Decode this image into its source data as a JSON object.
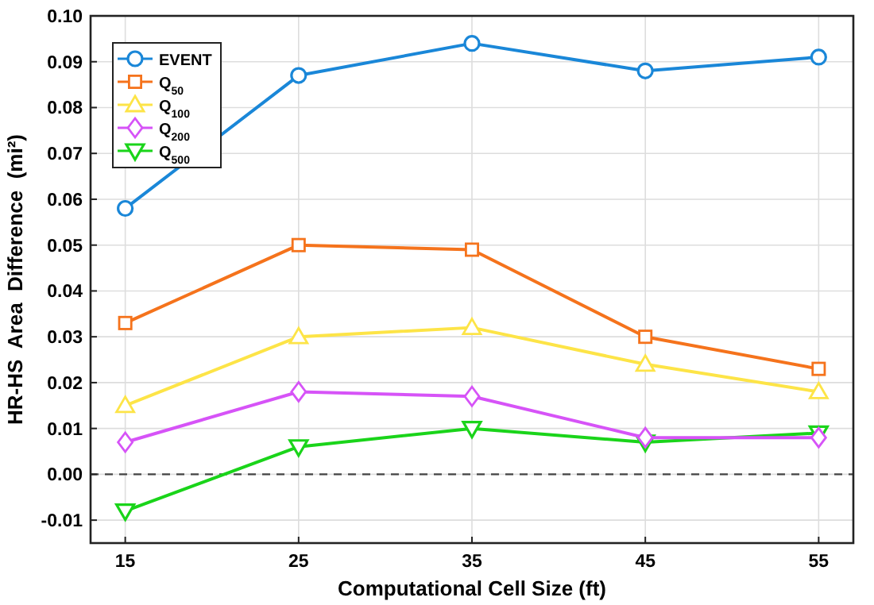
{
  "chart_data": {
    "type": "line",
    "xlabel": "Computational Cell Size (ft)",
    "ylabel": "HR-HS  Area  Difference  (mi²)",
    "x": [
      15,
      25,
      35,
      45,
      55
    ],
    "xlim": [
      13,
      57
    ],
    "xticks": [
      15,
      25,
      35,
      45,
      55
    ],
    "ylim": [
      -0.015,
      0.1
    ],
    "yticks": [
      {
        "value": -0.01,
        "label": "-0.01"
      },
      {
        "value": 0,
        "label": "0.00"
      },
      {
        "value": 0.01,
        "label": "0.01"
      },
      {
        "value": 0.02,
        "label": "0.02"
      },
      {
        "value": 0.03,
        "label": "0.03"
      },
      {
        "value": 0.04,
        "label": "0.04"
      },
      {
        "value": 0.05,
        "label": "0.05"
      },
      {
        "value": 0.06,
        "label": "0.06"
      },
      {
        "value": 0.07,
        "label": "0.07"
      },
      {
        "value": 0.08,
        "label": "0.08"
      },
      {
        "value": 0.09,
        "label": "0.09"
      },
      {
        "value": 0.1,
        "label": "0.10"
      }
    ],
    "grid": true,
    "legend": "top left",
    "line_style": "solid",
    "ref_lines": [
      {
        "axis": "y",
        "value": 0,
        "color": "#444444",
        "line_style": "dashed"
      }
    ],
    "series": [
      {
        "name": "EVENT",
        "color": "#1a87d8",
        "marker": "circle",
        "values": [
          0.058,
          0.087,
          0.094,
          0.088,
          0.091
        ]
      },
      {
        "name": "Q$_{50}$",
        "color": "#f5731c",
        "marker": "square",
        "values": [
          0.033,
          0.05,
          0.049,
          0.03,
          0.023
        ]
      },
      {
        "name": "Q$_{100}$",
        "color": "#fde447",
        "marker": "triangle",
        "values": [
          0.015,
          0.03,
          0.032,
          0.024,
          0.018
        ]
      },
      {
        "name": "Q$_{200}$",
        "color": "#d653f7",
        "marker": "diamond",
        "values": [
          0.007,
          0.018,
          0.017,
          0.008,
          0.008
        ]
      },
      {
        "name": "Q$_{500}$",
        "color": "#1ad41a",
        "marker": "triangle-down",
        "values": [
          -0.008,
          0.006,
          0.01,
          0.007,
          0.009
        ]
      }
    ]
  }
}
